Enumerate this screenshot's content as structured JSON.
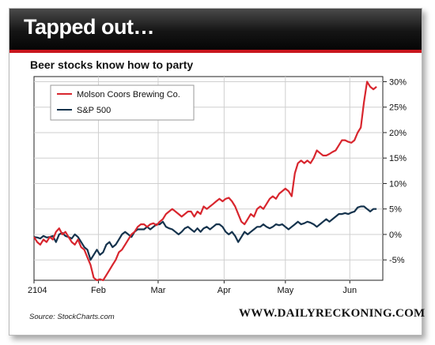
{
  "header": {
    "title": "Tapped out…",
    "subtitle": "Beer stocks know how to party"
  },
  "footer": {
    "source": "Source: StockCharts.com",
    "site": "WWW.DAILYRECKONING.COM"
  },
  "colors": {
    "molson": "#d8262e",
    "sp500": "#15334d",
    "accent": "#c8161d"
  },
  "chart_data": {
    "type": "line",
    "x_ticks": [
      {
        "label": "2104",
        "x": 0
      },
      {
        "label": "Feb",
        "x": 20.5
      },
      {
        "label": "Mar",
        "x": 39.5
      },
      {
        "label": "Apr",
        "x": 60.5
      },
      {
        "label": "May",
        "x": 80
      },
      {
        "label": "Jun",
        "x": 100.5
      }
    ],
    "xlim": [
      0,
      111
    ],
    "ylim": [
      -9,
      31
    ],
    "y_ticks": [
      30,
      25,
      20,
      15,
      10,
      5,
      0,
      -5
    ],
    "y_tick_labels": [
      "30%",
      "25%",
      "20%",
      "15%",
      "10%",
      "5%",
      "0%",
      "-5%"
    ],
    "grid": true,
    "legend": "top-left",
    "series": [
      {
        "name": "Molson Coors Brewing Co.",
        "values": [
          [
            0,
            -0.5
          ],
          [
            1,
            -1.5
          ],
          [
            2,
            -2
          ],
          [
            3,
            -1
          ],
          [
            4,
            -1.5
          ],
          [
            5,
            -0.5
          ],
          [
            6,
            -1
          ],
          [
            7,
            0.5
          ],
          [
            8,
            1.2
          ],
          [
            9,
            0
          ],
          [
            10,
            0.5
          ],
          [
            11,
            -0.5
          ],
          [
            12,
            -1.5
          ],
          [
            13,
            -2
          ],
          [
            14,
            -1
          ],
          [
            15,
            -2.5
          ],
          [
            16,
            -3
          ],
          [
            17,
            -4.5
          ],
          [
            18,
            -6
          ],
          [
            19,
            -8.5
          ],
          [
            20,
            -9
          ],
          [
            21,
            -8.8
          ],
          [
            22,
            -9
          ],
          [
            23,
            -8
          ],
          [
            24,
            -7
          ],
          [
            25,
            -6
          ],
          [
            26,
            -5
          ],
          [
            27,
            -3.5
          ],
          [
            28,
            -3
          ],
          [
            29,
            -2
          ],
          [
            30,
            -1
          ],
          [
            31,
            0
          ],
          [
            32,
            0.5
          ],
          [
            33,
            1.5
          ],
          [
            34,
            2
          ],
          [
            35,
            2
          ],
          [
            36,
            1.5
          ],
          [
            37,
            2
          ],
          [
            38,
            2.2
          ],
          [
            39,
            1.8
          ],
          [
            40,
            2.5
          ],
          [
            41,
            3
          ],
          [
            42,
            4
          ],
          [
            43,
            4.5
          ],
          [
            44,
            5
          ],
          [
            45,
            4.5
          ],
          [
            46,
            4
          ],
          [
            47,
            3.5
          ],
          [
            48,
            4
          ],
          [
            49,
            4.5
          ],
          [
            50,
            4.5
          ],
          [
            51,
            3.5
          ],
          [
            52,
            4.5
          ],
          [
            53,
            4
          ],
          [
            54,
            5.5
          ],
          [
            55,
            5
          ],
          [
            56,
            5.5
          ],
          [
            57,
            6
          ],
          [
            58,
            6.5
          ],
          [
            59,
            7
          ],
          [
            60,
            6.5
          ],
          [
            61,
            7
          ],
          [
            62,
            7.2
          ],
          [
            63,
            6.5
          ],
          [
            64,
            5.5
          ],
          [
            65,
            4
          ],
          [
            66,
            2.5
          ],
          [
            67,
            2
          ],
          [
            68,
            3
          ],
          [
            69,
            4
          ],
          [
            70,
            3.5
          ],
          [
            71,
            5
          ],
          [
            72,
            5.5
          ],
          [
            73,
            5
          ],
          [
            74,
            6
          ],
          [
            75,
            7
          ],
          [
            76,
            7.5
          ],
          [
            77,
            7
          ],
          [
            78,
            8
          ],
          [
            79,
            8.5
          ],
          [
            80,
            9
          ],
          [
            81,
            8.5
          ],
          [
            82,
            7.5
          ],
          [
            83,
            12
          ],
          [
            84,
            14
          ],
          [
            85,
            14.5
          ],
          [
            86,
            14
          ],
          [
            87,
            14.5
          ],
          [
            88,
            14
          ],
          [
            89,
            15
          ],
          [
            90,
            16.5
          ],
          [
            91,
            16
          ],
          [
            92,
            15.5
          ],
          [
            93,
            15.5
          ],
          [
            94,
            15.8
          ],
          [
            95,
            16.2
          ],
          [
            96,
            16.5
          ],
          [
            97,
            17.5
          ],
          [
            98,
            18.5
          ],
          [
            99,
            18.5
          ],
          [
            100,
            18.2
          ],
          [
            101,
            18
          ],
          [
            102,
            18.5
          ],
          [
            103,
            20
          ],
          [
            104,
            21
          ],
          [
            105,
            26
          ],
          [
            106,
            30
          ],
          [
            107,
            29
          ],
          [
            108,
            28.5
          ],
          [
            109,
            29
          ]
        ]
      },
      {
        "name": "S&P 500",
        "values": [
          [
            0,
            -0.5
          ],
          [
            1,
            -0.6
          ],
          [
            2,
            -0.8
          ],
          [
            3,
            -0.3
          ],
          [
            4,
            -0.6
          ],
          [
            5,
            -0.5
          ],
          [
            6,
            -0.3
          ],
          [
            7,
            -1.5
          ],
          [
            8,
            0
          ],
          [
            9,
            0.3
          ],
          [
            10,
            -0.3
          ],
          [
            11,
            -0.5
          ],
          [
            12,
            -0.8
          ],
          [
            13,
            0
          ],
          [
            14,
            -0.5
          ],
          [
            15,
            -1.5
          ],
          [
            16,
            -2.5
          ],
          [
            17,
            -3
          ],
          [
            18,
            -5
          ],
          [
            19,
            -4
          ],
          [
            20,
            -3
          ],
          [
            21,
            -4
          ],
          [
            22,
            -3.5
          ],
          [
            23,
            -2
          ],
          [
            24,
            -1.5
          ],
          [
            25,
            -2.5
          ],
          [
            26,
            -2
          ],
          [
            27,
            -1
          ],
          [
            28,
            0
          ],
          [
            29,
            0.5
          ],
          [
            30,
            0
          ],
          [
            31,
            -0.5
          ],
          [
            32,
            0.5
          ],
          [
            33,
            1
          ],
          [
            34,
            1
          ],
          [
            35,
            1
          ],
          [
            36,
            1.5
          ],
          [
            37,
            1
          ],
          [
            38,
            1.5
          ],
          [
            39,
            2
          ],
          [
            40,
            2
          ],
          [
            41,
            2.5
          ],
          [
            42,
            1.5
          ],
          [
            43,
            1.2
          ],
          [
            44,
            1
          ],
          [
            45,
            0.5
          ],
          [
            46,
            0
          ],
          [
            47,
            0.5
          ],
          [
            48,
            1.2
          ],
          [
            49,
            1.5
          ],
          [
            50,
            1
          ],
          [
            51,
            0.5
          ],
          [
            52,
            1.2
          ],
          [
            53,
            0.5
          ],
          [
            54,
            1.2
          ],
          [
            55,
            1.5
          ],
          [
            56,
            1
          ],
          [
            57,
            1.5
          ],
          [
            58,
            2
          ],
          [
            59,
            2
          ],
          [
            60,
            1.5
          ],
          [
            61,
            0.5
          ],
          [
            62,
            0
          ],
          [
            63,
            0.5
          ],
          [
            64,
            -0.3
          ],
          [
            65,
            -1.5
          ],
          [
            66,
            -0.5
          ],
          [
            67,
            0.5
          ],
          [
            68,
            0
          ],
          [
            69,
            0.5
          ],
          [
            70,
            1
          ],
          [
            71,
            1.5
          ],
          [
            72,
            1.5
          ],
          [
            73,
            2
          ],
          [
            74,
            1.5
          ],
          [
            75,
            1.2
          ],
          [
            76,
            1.5
          ],
          [
            77,
            2
          ],
          [
            78,
            1.8
          ],
          [
            79,
            2
          ],
          [
            80,
            1.5
          ],
          [
            81,
            1
          ],
          [
            82,
            1.5
          ],
          [
            83,
            2
          ],
          [
            84,
            2.5
          ],
          [
            85,
            2
          ],
          [
            86,
            2.2
          ],
          [
            87,
            2.5
          ],
          [
            88,
            2.3
          ],
          [
            89,
            2
          ],
          [
            90,
            1.5
          ],
          [
            91,
            2
          ],
          [
            92,
            2.5
          ],
          [
            93,
            3
          ],
          [
            94,
            2.5
          ],
          [
            95,
            3
          ],
          [
            96,
            3.5
          ],
          [
            97,
            4
          ],
          [
            98,
            4
          ],
          [
            99,
            4.2
          ],
          [
            100,
            4
          ],
          [
            101,
            4.3
          ],
          [
            102,
            4.5
          ],
          [
            103,
            5.3
          ],
          [
            104,
            5.5
          ],
          [
            105,
            5.5
          ],
          [
            106,
            5
          ],
          [
            107,
            4.5
          ],
          [
            108,
            5
          ],
          [
            109,
            5
          ]
        ]
      }
    ]
  }
}
